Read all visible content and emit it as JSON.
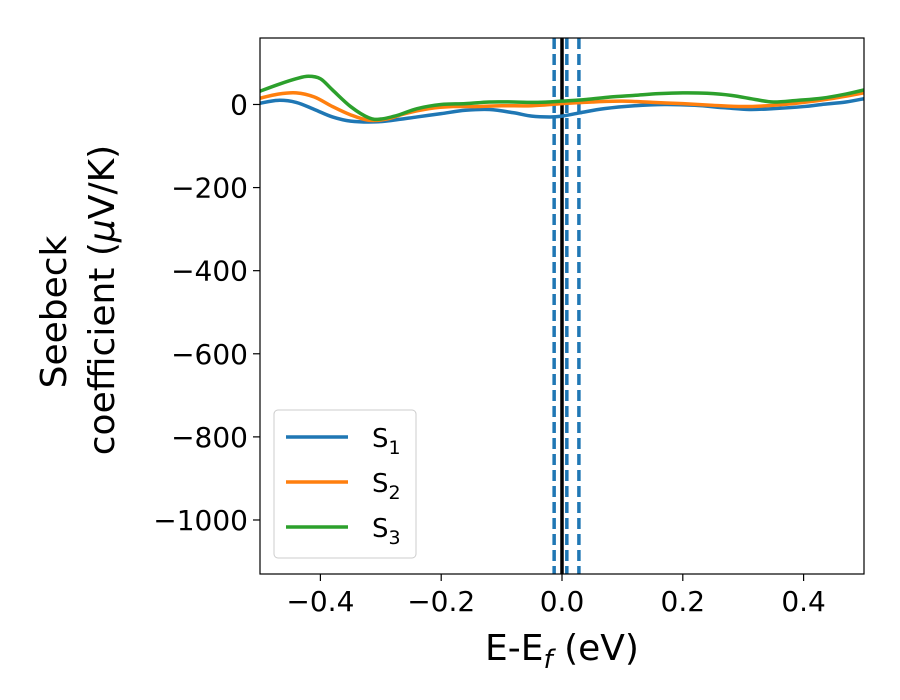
{
  "chart_data": {
    "type": "line",
    "title": "",
    "xlabel_main": "E-E",
    "xlabel_sub": "f",
    "xlabel_unit": " (eV)",
    "ylabel_line1": "Seebeck",
    "ylabel_line2": "coefficient  (",
    "ylabel_mu": "μ",
    "ylabel_unit": "V/K)",
    "xlim": [
      -0.5,
      0.5
    ],
    "ylim": [
      -1130,
      160
    ],
    "x_ticks": [
      -0.4,
      -0.2,
      0.0,
      0.2,
      0.4
    ],
    "x_tick_labels": [
      "−0.4",
      "−0.2",
      "0.0",
      "0.2",
      "0.4"
    ],
    "y_ticks": [
      0,
      -200,
      -400,
      -600,
      -800,
      -1000
    ],
    "y_tick_labels": [
      "0",
      "−200",
      "−400",
      "−600",
      "−800",
      "−1000"
    ],
    "grid": false,
    "legend_position": "lower-left",
    "series": [
      {
        "name": "S",
        "name_sub": "1",
        "color": "#1f77b4",
        "points": [
          [
            -0.5,
            3
          ],
          [
            -0.47,
            10
          ],
          [
            -0.44,
            5
          ],
          [
            -0.41,
            -12
          ],
          [
            -0.38,
            -30
          ],
          [
            -0.35,
            -40
          ],
          [
            -0.31,
            -42
          ],
          [
            -0.28,
            -38
          ],
          [
            -0.24,
            -30
          ],
          [
            -0.2,
            -22
          ],
          [
            -0.16,
            -14
          ],
          [
            -0.12,
            -12
          ],
          [
            -0.08,
            -20
          ],
          [
            -0.05,
            -28
          ],
          [
            -0.02,
            -30
          ],
          [
            0.0,
            -28
          ],
          [
            0.03,
            -20
          ],
          [
            0.07,
            -10
          ],
          [
            0.12,
            -3
          ],
          [
            0.17,
            0
          ],
          [
            0.22,
            -2
          ],
          [
            0.27,
            -8
          ],
          [
            0.31,
            -12
          ],
          [
            0.35,
            -10
          ],
          [
            0.4,
            -5
          ],
          [
            0.43,
            0
          ],
          [
            0.47,
            6
          ],
          [
            0.5,
            14
          ]
        ]
      },
      {
        "name": "S",
        "name_sub": "2",
        "color": "#ff7f0e",
        "points": [
          [
            -0.5,
            15
          ],
          [
            -0.47,
            25
          ],
          [
            -0.44,
            28
          ],
          [
            -0.41,
            18
          ],
          [
            -0.38,
            -5
          ],
          [
            -0.35,
            -25
          ],
          [
            -0.32,
            -38
          ],
          [
            -0.29,
            -35
          ],
          [
            -0.26,
            -22
          ],
          [
            -0.22,
            -10
          ],
          [
            -0.18,
            -5
          ],
          [
            -0.14,
            -5
          ],
          [
            -0.1,
            -3
          ],
          [
            -0.05,
            -3
          ],
          [
            0.0,
            2
          ],
          [
            0.05,
            6
          ],
          [
            0.1,
            8
          ],
          [
            0.15,
            5
          ],
          [
            0.2,
            2
          ],
          [
            0.25,
            -2
          ],
          [
            0.3,
            -5
          ],
          [
            0.35,
            -2
          ],
          [
            0.4,
            5
          ],
          [
            0.45,
            15
          ],
          [
            0.5,
            28
          ]
        ]
      },
      {
        "name": "S",
        "name_sub": "3",
        "color": "#2ca02c",
        "points": [
          [
            -0.5,
            32
          ],
          [
            -0.47,
            48
          ],
          [
            -0.44,
            62
          ],
          [
            -0.42,
            68
          ],
          [
            -0.4,
            62
          ],
          [
            -0.38,
            35
          ],
          [
            -0.35,
            -5
          ],
          [
            -0.32,
            -32
          ],
          [
            -0.3,
            -35
          ],
          [
            -0.27,
            -25
          ],
          [
            -0.24,
            -10
          ],
          [
            -0.2,
            0
          ],
          [
            -0.16,
            2
          ],
          [
            -0.12,
            6
          ],
          [
            -0.08,
            6
          ],
          [
            -0.04,
            5
          ],
          [
            0.0,
            8
          ],
          [
            0.04,
            12
          ],
          [
            0.08,
            18
          ],
          [
            0.12,
            22
          ],
          [
            0.16,
            26
          ],
          [
            0.2,
            28
          ],
          [
            0.24,
            27
          ],
          [
            0.28,
            22
          ],
          [
            0.32,
            12
          ],
          [
            0.35,
            6
          ],
          [
            0.39,
            10
          ],
          [
            0.43,
            15
          ],
          [
            0.47,
            25
          ],
          [
            0.5,
            35
          ]
        ]
      }
    ],
    "vertical_lines": [
      {
        "x": 0.0,
        "color": "#000000",
        "style": "solid"
      },
      {
        "x": -0.013,
        "color": "#1f77b4",
        "style": "dashed"
      },
      {
        "x": 0.008,
        "color": "#1f77b4",
        "style": "dashed"
      },
      {
        "x": 0.028,
        "color": "#1f77b4",
        "style": "dashed"
      }
    ]
  }
}
